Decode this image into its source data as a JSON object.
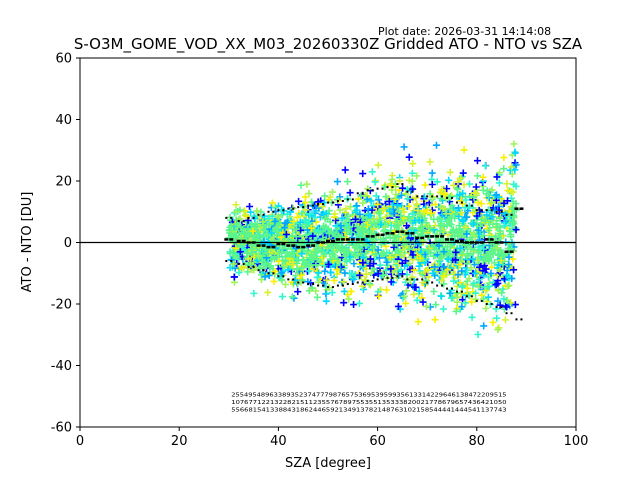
{
  "plot_date": "Plot date: 2026-03-31 14:14:08",
  "colors": {
    "scatter": [
      "#0000ff",
      "#00a6ff",
      "#00d8ff",
      "#2ef7d0",
      "#5cf58b",
      "#9ef55a",
      "#d8f02e",
      "#f7f000"
    ],
    "median": "#000000",
    "percentile": "#000000",
    "zero_line": "#000000"
  },
  "chart_data": {
    "type": "scatter",
    "title": "S-O3M_GOME_VOD_XX_M03_20260330Z Gridded ATO - NTO vs SZA",
    "xlabel": "SZA [degree]",
    "ylabel": "ATO - NTO [DU]",
    "xlim": [
      0,
      100
    ],
    "ylim": [
      -60,
      60
    ],
    "xticks": [
      0,
      20,
      40,
      60,
      80,
      100
    ],
    "yticks": [
      -60,
      -40,
      -20,
      0,
      20,
      40,
      60
    ],
    "grid": false,
    "reference_line": 0,
    "scatter_sza_range": [
      30,
      88
    ],
    "median_x": [
      29.5,
      32,
      34,
      36,
      38,
      40,
      42,
      44,
      46,
      48,
      50,
      52,
      54,
      56,
      58,
      60,
      62,
      64,
      66,
      68,
      70,
      72,
      74,
      76,
      78,
      80,
      82,
      84,
      86,
      88
    ],
    "median_y": [
      1,
      0.5,
      0,
      -1,
      -1.5,
      -0.5,
      -1,
      -1.5,
      -1,
      0,
      0.5,
      1,
      1,
      1,
      2,
      2.5,
      3,
      3.5,
      3,
      1.5,
      2,
      2,
      1,
      0.5,
      0,
      0,
      1,
      0,
      -3,
      11
    ],
    "p90_y": [
      8,
      7,
      8,
      9,
      10,
      10.5,
      11,
      11.5,
      12,
      12.5,
      13,
      13.5,
      14,
      16,
      17,
      17.5,
      18,
      19,
      16.5,
      15,
      15,
      15,
      14.5,
      13,
      12,
      10.5,
      10.5,
      10,
      9,
      11
    ],
    "p10_y": [
      -6,
      -7,
      -8,
      -9,
      -10,
      -11,
      -12,
      -13,
      -13.5,
      -14,
      -14.5,
      -14,
      -13.5,
      -13,
      -12.5,
      -12,
      -11.5,
      -11,
      -12,
      -12,
      -13,
      -14,
      -15,
      -16,
      -17.5,
      -19,
      -20,
      -21,
      -23,
      -25
    ],
    "count_rows": [
      "25549548963389352374777987657536953959935613314229646138472209515",
      "1076771221322821511235576789755355135333820021778679657436421050",
      "5566815413388431862446592134913782148763102158544441444541137743"
    ]
  }
}
